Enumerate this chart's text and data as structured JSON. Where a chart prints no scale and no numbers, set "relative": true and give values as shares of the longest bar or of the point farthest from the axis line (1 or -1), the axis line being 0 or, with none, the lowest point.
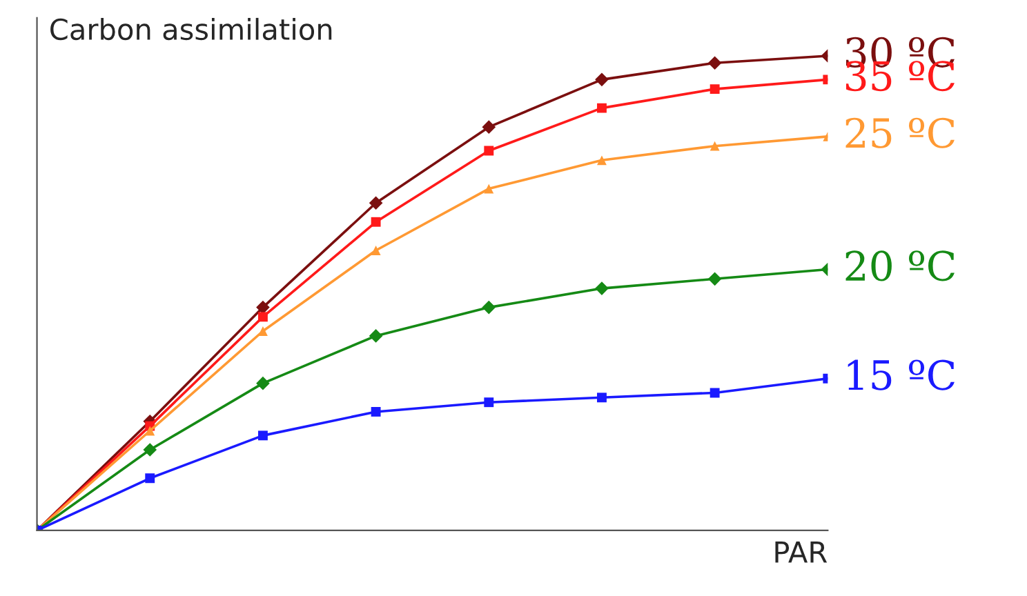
{
  "chart_data": {
    "type": "line",
    "relative": true,
    "xlabel": "PAR",
    "ylabel": "Carbon assimilation",
    "categories": [
      null,
      null,
      null,
      null,
      null,
      null,
      null,
      null
    ],
    "legend": false,
    "series": [
      {
        "name": "30 ºC",
        "color": "#7b0f0f",
        "marker": "diamond",
        "values": [
          0,
          0.23,
          0.47,
          0.69,
          0.85,
          0.95,
          0.985,
          1.0
        ]
      },
      {
        "name": "35 ºC",
        "color": "#ff1a1a",
        "marker": "square",
        "values": [
          0,
          0.22,
          0.45,
          0.65,
          0.8,
          0.89,
          0.93,
          0.95
        ]
      },
      {
        "name": "25 ºC",
        "color": "#ff9933",
        "marker": "triangle",
        "values": [
          0,
          0.21,
          0.42,
          0.59,
          0.72,
          0.78,
          0.81,
          0.83
        ]
      },
      {
        "name": "20 ºC",
        "color": "#158a15",
        "marker": "diamond",
        "values": [
          0,
          0.17,
          0.31,
          0.41,
          0.47,
          0.51,
          0.53,
          0.55
        ]
      },
      {
        "name": "15 ºC",
        "color": "#1a1aff",
        "marker": "square",
        "values": [
          0,
          0.11,
          0.2,
          0.25,
          0.27,
          0.28,
          0.29,
          0.32
        ]
      }
    ]
  }
}
